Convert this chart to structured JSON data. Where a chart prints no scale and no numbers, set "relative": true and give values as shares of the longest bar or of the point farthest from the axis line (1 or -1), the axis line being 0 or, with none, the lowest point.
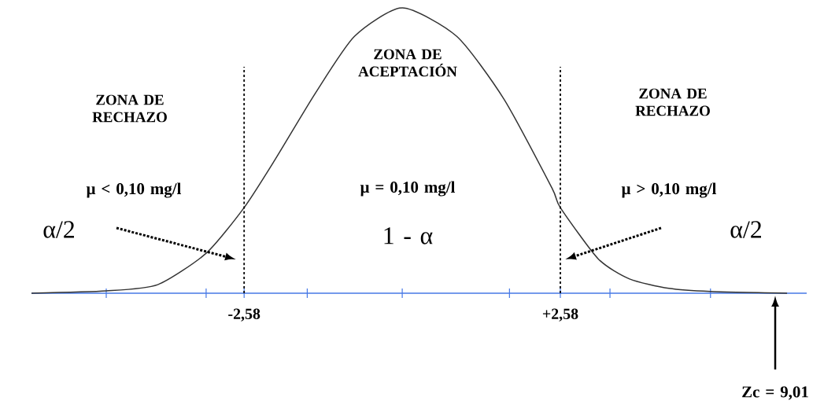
{
  "chart_data": {
    "type": "line",
    "relative": true,
    "color": "#333333",
    "marker": "none",
    "line_style": "solid",
    "x": [
      -6.05,
      -4.83,
      -3.99,
      -3.2,
      -2.58,
      -2.07,
      -1.42,
      -0.78,
      0,
      0.89,
      1.66,
      2.44,
      2.58,
      3.2,
      3.71,
      4.35,
      5.03,
      6.28
    ],
    "values": [
      0,
      0.008,
      0.03,
      0.14,
      0.3,
      0.47,
      0.7,
      0.9,
      1,
      0.9,
      0.68,
      0.37,
      0.3,
      0.12,
      0.05,
      0.017,
      0.006,
      0
    ],
    "xlim": [
      -6.05,
      6.6
    ],
    "xticks": [
      {
        "value": -4.83,
        "label": null
      },
      {
        "value": -3.2,
        "label": null
      },
      {
        "value": -2.58,
        "label": "-2,58"
      },
      {
        "value": -1.55,
        "label": null
      },
      {
        "value": 0,
        "label": null
      },
      {
        "value": 1.75,
        "label": null
      },
      {
        "value": 2.58,
        "label": "+2,58"
      },
      {
        "value": 3.39,
        "label": null
      },
      {
        "value": 5.03,
        "label": null
      }
    ],
    "ref_lines": [
      {
        "axis": "x",
        "value": -2.58,
        "color": "#000000",
        "line_style": "dashed"
      },
      {
        "axis": "x",
        "value": 2.58,
        "color": "#000000",
        "line_style": "dashed"
      }
    ],
    "annotations": [
      "ZONA DE RECHAZO",
      "ZONA DE ACEPTACIÓN",
      "ZONA DE RECHAZO",
      "μ < 0,10 mg/l",
      "μ = 0,10 mg/l",
      "μ > 0,10 mg/l",
      "α/2",
      "1 - α",
      "α/2",
      "Zc = 9,01"
    ]
  }
}
